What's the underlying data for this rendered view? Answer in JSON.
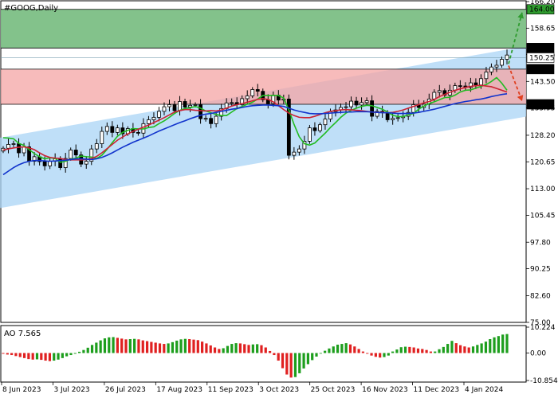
{
  "chart_data": [
    {
      "type": "candlestick",
      "title": "#GOOG,Daily",
      "price_axis": {
        "ylim": [
          75.0,
          166.2
        ],
        "ticks": [
          "166.20",
          "158.65",
          "151.15",
          "143.50",
          "135.95",
          "128.20",
          "120.65",
          "113.00",
          "105.45",
          "97.80",
          "90.25",
          "82.60",
          "75.00"
        ]
      },
      "x_axis": {
        "ticks": [
          "8 Jun 2023",
          "3 Jul 2023",
          "26 Jul 2023",
          "17 Aug 2023",
          "11 Sep 2023",
          "3 Oct 2023",
          "25 Oct 2023",
          "16 Nov 2023",
          "11 Dec 2023",
          "4 Jan 2024"
        ]
      },
      "levels": [
        {
          "label": "164.00",
          "value": 164.0,
          "color": "#2e9b2e"
        },
        {
          "label": "153.00",
          "value": 153.0,
          "color": "#000000"
        },
        {
          "label": "150.25",
          "value": 150.25,
          "color": "#000000"
        },
        {
          "label": "147.00",
          "value": 147.0,
          "color": "#000000"
        },
        {
          "label": "137.00",
          "value": 137.0,
          "color": "#000000"
        }
      ],
      "zones": [
        {
          "name": "green",
          "from": 153.0,
          "to": 164.0,
          "color": "#7cbf85"
        },
        {
          "name": "red",
          "from": 137.0,
          "to": 147.0,
          "color": "#f4a4a4"
        }
      ],
      "channel": {
        "color": "#a9d4f5",
        "start": {
          "upper": 127.5,
          "lower": 107.5
        },
        "end": {
          "upper": 153.5,
          "lower": 133.5
        }
      },
      "series": [
        {
          "name": "close",
          "values": [
            124.5,
            125.6,
            125.8,
            123.2,
            124.9,
            120.8,
            122.1,
            120.7,
            119.5,
            120.8,
            121.5,
            119.0,
            121.6,
            124.0,
            122.6,
            120.0,
            120.8,
            124.3,
            125.8,
            129.3,
            130.7,
            129.0,
            130.3,
            128.6,
            130.1,
            129.0,
            128.8,
            131.5,
            132.6,
            133.3,
            135.0,
            136.3,
            136.9,
            135.2,
            137.8,
            136.2,
            136.7,
            136.9,
            132.9,
            133.0,
            131.5,
            133.6,
            135.8,
            137.4,
            137.5,
            136.9,
            138.6,
            139.4,
            141.2,
            140.7,
            138.3,
            137.2,
            139.6,
            138.2,
            138.5,
            122.5,
            123.4,
            124.3,
            126.5,
            130.3,
            129.5,
            131.2,
            132.8,
            134.9,
            135.4,
            136.1,
            136.3,
            137.9,
            136.8,
            137.5,
            138.0,
            133.6,
            135.0,
            134.6,
            132.6,
            133.0,
            133.2,
            133.6,
            134.7,
            136.9,
            136.1,
            137.0,
            138.5,
            140.4,
            140.9,
            139.6,
            141.0,
            142.3,
            142.2,
            141.8,
            143.1,
            142.5,
            144.3,
            146.2,
            147.6,
            148.1,
            149.8,
            151.0
          ]
        },
        {
          "name": "ma_green",
          "color": "#22bb22",
          "values": [
            127.5,
            127.4,
            127.2,
            125.9,
            125.3,
            124.1,
            123.0,
            122.1,
            121.5,
            121.8,
            121.6,
            120.5,
            120.8,
            121.4,
            121.7,
            122.3,
            122.1,
            122.0,
            121.6,
            122.5,
            124.2,
            126.1,
            127.9,
            129.0,
            129.6,
            130.1,
            130.0,
            130.0,
            130.4,
            130.6,
            131.5,
            132.3,
            133.3,
            134.4,
            135.3,
            135.8,
            136.0,
            136.4,
            135.9,
            135.1,
            134.6,
            134.1,
            133.8,
            133.8,
            134.8,
            135.8,
            136.4,
            137.0,
            137.6,
            138.5,
            139.5,
            139.5,
            139.5,
            139.5,
            138.8,
            135.4,
            131.3,
            127.8,
            125.8,
            125.4,
            126.0,
            127.4,
            128.8,
            130.4,
            131.8,
            133.3,
            134.5,
            135.3,
            135.9,
            136.4,
            136.7,
            136.6,
            136.1,
            135.6,
            134.8,
            133.9,
            133.5,
            133.5,
            134.0,
            134.4,
            135.6,
            136.5,
            137.2,
            137.7,
            138.3,
            138.9,
            139.0,
            139.6,
            140.5,
            141.0,
            141.1,
            141.6,
            142.1,
            142.6,
            143.5,
            144.6,
            143.0,
            141.0
          ]
        },
        {
          "name": "ma_red",
          "color": "#cc2233",
          "values": [
            124.0,
            124.3,
            124.6,
            124.8,
            124.9,
            124.6,
            124.1,
            123.2,
            122.4,
            121.9,
            121.7,
            121.6,
            121.3,
            121.2,
            121.2,
            121.2,
            121.3,
            121.6,
            122.2,
            123.2,
            124.4,
            125.6,
            126.8,
            127.7,
            128.6,
            129.3,
            129.9,
            130.5,
            131.1,
            131.8,
            132.5,
            133.2,
            134.0,
            134.8,
            135.2,
            135.5,
            135.5,
            135.3,
            135.2,
            135.1,
            135.2,
            135.1,
            135.4,
            135.9,
            136.5,
            136.9,
            137.2,
            137.6,
            138.0,
            138.4,
            138.6,
            138.4,
            137.7,
            136.6,
            135.5,
            134.5,
            133.8,
            133.3,
            133.2,
            133.2,
            133.6,
            134.1,
            134.6,
            135.0,
            135.2,
            135.4,
            135.5,
            135.4,
            135.3,
            135.2,
            135.0,
            134.8,
            134.7,
            134.7,
            134.6,
            134.7,
            135.0,
            135.4,
            135.9,
            136.4,
            136.9,
            137.4,
            137.8,
            138.4,
            139.2,
            139.8,
            140.4,
            141.0,
            141.4,
            141.8,
            142.1,
            142.3,
            142.4,
            142.2,
            142.0,
            141.5,
            141.0,
            140.5
          ]
        },
        {
          "name": "ma_blue",
          "color": "#1133cc",
          "values": [
            117.0,
            118.0,
            119.0,
            119.8,
            120.4,
            120.8,
            121.0,
            121.0,
            120.9,
            120.8,
            120.9,
            121.0,
            121.1,
            121.3,
            121.5,
            121.5,
            121.4,
            121.3,
            121.5,
            121.9,
            122.5,
            123.2,
            124.0,
            124.8,
            125.5,
            126.2,
            126.8,
            127.4,
            128.0,
            128.7,
            129.4,
            130.0,
            130.6,
            131.2,
            131.8,
            132.3,
            132.9,
            133.4,
            133.9,
            134.2,
            134.4,
            134.7,
            135.0,
            135.3,
            135.6,
            135.8,
            136.1,
            136.4,
            136.6,
            136.7,
            136.8,
            136.8,
            136.7,
            136.6,
            136.4,
            135.9,
            135.4,
            135.0,
            134.7,
            134.4,
            134.3,
            134.3,
            134.4,
            134.5,
            134.6,
            134.7,
            134.8,
            134.8,
            134.9,
            134.9,
            134.9,
            134.8,
            134.7,
            134.6,
            134.6,
            134.5,
            134.4,
            134.4,
            134.4,
            134.5,
            134.7,
            135.0,
            135.3,
            135.6,
            136.0,
            136.4,
            136.8,
            137.2,
            137.5,
            137.8,
            138.0,
            138.3,
            138.5,
            138.8,
            139.2,
            139.5,
            139.8,
            140.0
          ]
        }
      ],
      "arrows": [
        {
          "name": "bullish-arrow",
          "color": "#2e9b2e",
          "from": 148.5,
          "to": 164.0
        },
        {
          "name": "bearish-arrow",
          "color": "#e04020",
          "from": 148.0,
          "to": 137.0
        }
      ]
    },
    {
      "type": "bar",
      "title": "AO 7.565",
      "ylim": [
        -10.854,
        10.224
      ],
      "ticks": [
        "10.224",
        "0.00",
        "-10.854"
      ],
      "values": [
        -0.3,
        -0.6,
        -0.8,
        -1.2,
        -1.6,
        -2.0,
        -2.4,
        -2.6,
        -2.5,
        -2.7,
        -3.0,
        -3.2,
        -3.0,
        -2.6,
        -2.0,
        -1.3,
        -0.8,
        -0.3,
        0.5,
        1.2,
        2.1,
        3.2,
        4.1,
        5.0,
        5.8,
        6.2,
        6.3,
        6.0,
        5.7,
        5.4,
        5.5,
        5.6,
        5.4,
        5.0,
        4.7,
        4.4,
        4.1,
        3.8,
        3.6,
        3.8,
        4.3,
        4.9,
        5.4,
        5.6,
        5.5,
        5.3,
        5.1,
        4.5,
        3.8,
        3.0,
        2.2,
        1.6,
        1.9,
        2.8,
        3.6,
        3.9,
        3.8,
        3.5,
        3.2,
        3.4,
        3.5,
        3.1,
        2.2,
        0.8,
        -0.8,
        -3.0,
        -6.0,
        -8.5,
        -9.7,
        -9.5,
        -8.0,
        -6.1,
        -4.4,
        -2.8,
        -1.4,
        -0.2,
        0.9,
        1.8,
        2.6,
        3.3,
        3.6,
        3.9,
        3.4,
        2.6,
        1.6,
        0.6,
        -0.3,
        -1.0,
        -1.5,
        -1.8,
        -1.6,
        -1.0,
        0.6,
        1.4,
        2.3,
        2.5,
        2.4,
        2.2,
        1.8,
        1.6,
        1.2,
        0.6,
        0.6,
        1.5,
        2.4,
        3.6,
        4.8,
        3.9,
        3.1,
        2.6,
        2.2,
        2.6,
        3.2,
        3.8,
        4.5,
        5.5,
        6.2,
        6.7,
        7.3,
        7.5
      ]
    }
  ]
}
